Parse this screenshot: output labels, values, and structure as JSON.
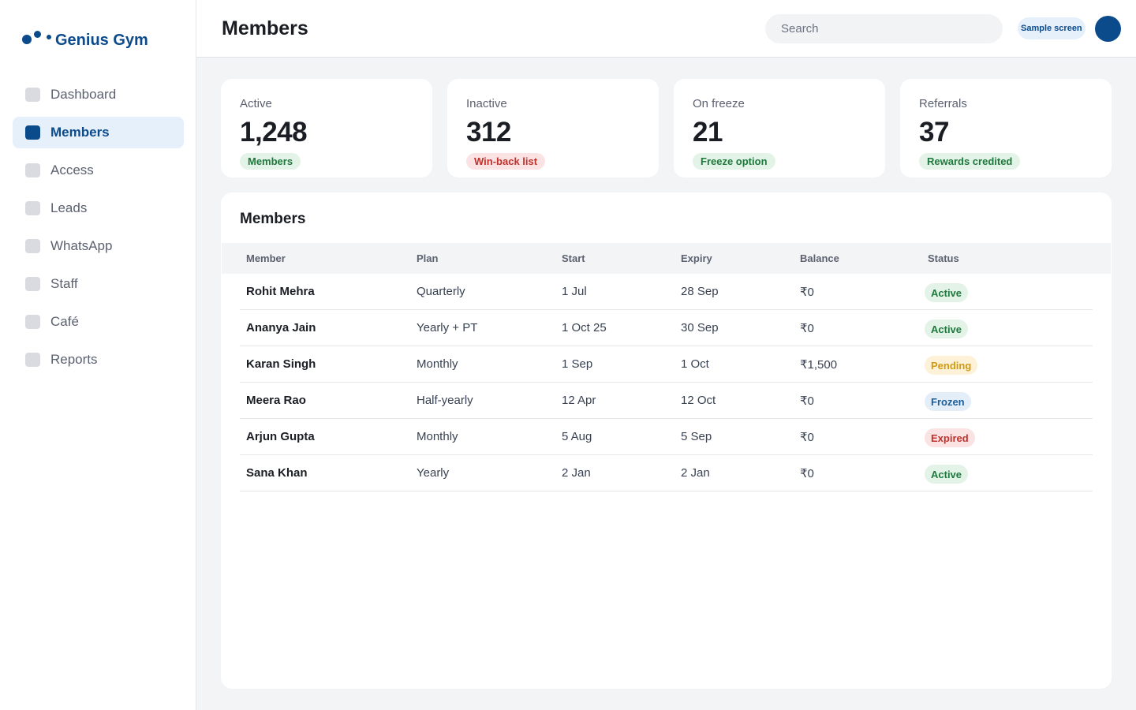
{
  "brand": {
    "name": "Genius Gym",
    "color": "#0b4a8b"
  },
  "sidebar": {
    "items": [
      {
        "label": "Dashboard",
        "active": false
      },
      {
        "label": "Members",
        "active": true
      },
      {
        "label": "Access",
        "active": false
      },
      {
        "label": "Leads",
        "active": false
      },
      {
        "label": "WhatsApp",
        "active": false
      },
      {
        "label": "Staff",
        "active": false
      },
      {
        "label": "Café",
        "active": false
      },
      {
        "label": "Reports",
        "active": false
      }
    ]
  },
  "header": {
    "title": "Members",
    "search_placeholder": "Search",
    "sample_badge": "Sample screen"
  },
  "stats": [
    {
      "label": "Active",
      "value": "1,248",
      "badge": "Members",
      "badge_tone": "green"
    },
    {
      "label": "Inactive",
      "value": "312",
      "badge": "Win-back list",
      "badge_tone": "red"
    },
    {
      "label": "On freeze",
      "value": "21",
      "badge": "Freeze option",
      "badge_tone": "green"
    },
    {
      "label": "Referrals",
      "value": "37",
      "badge": "Rewards credited",
      "badge_tone": "green"
    }
  ],
  "table": {
    "title": "Members",
    "columns": [
      "Member",
      "Plan",
      "Start",
      "Expiry",
      "Balance",
      "Status"
    ],
    "rows": [
      {
        "member": "Rohit Mehra",
        "plan": "Quarterly",
        "start": "1 Jul",
        "expiry": "28 Sep",
        "balance": "₹0",
        "status": "Active"
      },
      {
        "member": "Ananya Jain",
        "plan": "Yearly + PT",
        "start": "1 Oct 25",
        "expiry": "30 Sep",
        "balance": "₹0",
        "status": "Active"
      },
      {
        "member": "Karan Singh",
        "plan": "Monthly",
        "start": "1 Sep",
        "expiry": "1 Oct",
        "balance": "₹1,500",
        "status": "Pending"
      },
      {
        "member": "Meera Rao",
        "plan": "Half-yearly",
        "start": "12 Apr",
        "expiry": "12 Oct",
        "balance": "₹0",
        "status": "Frozen"
      },
      {
        "member": "Arjun Gupta",
        "plan": "Monthly",
        "start": "5 Aug",
        "expiry": "5 Sep",
        "balance": "₹0",
        "status": "Expired"
      },
      {
        "member": "Sana Khan",
        "plan": "Yearly",
        "start": "2 Jan",
        "expiry": "2 Jan",
        "balance": "₹0",
        "status": "Active"
      }
    ]
  },
  "colors": {
    "active": "#1e7a3c",
    "pending": "#d29a10",
    "frozen": "#1d5e99",
    "expired": "#c0322b"
  }
}
